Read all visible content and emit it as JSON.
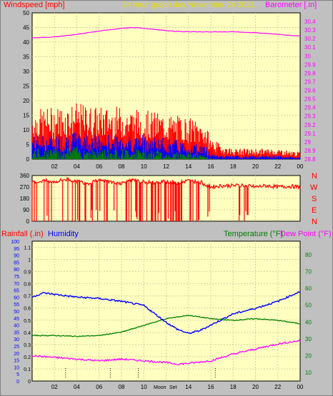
{
  "header": {
    "left": "Windspeed [mph]",
    "center": "24 hour graph day   November 24 2021",
    "right": "Barometer [.in]"
  },
  "panel3_header": {
    "rain": "Rainfall (.in)",
    "humidity": "Humidity",
    "temperature": "Temperature (°F)",
    "dewpoint": "Dew Point (°F)"
  },
  "compass": [
    "N",
    "W",
    "S",
    "E",
    "N"
  ],
  "annotations": {
    "moon": "Moon",
    "sunset": "Set"
  },
  "colors": {
    "plot_bg": "#ffffc0",
    "frame_bg": "#c0c0c0",
    "wind_gust": "#ff0000",
    "wind_avg": "#0000ff",
    "wind_low": "#008000",
    "barometer": "#ff00ff",
    "direction": "#ff0000",
    "humidity": "#0000ff",
    "temperature": "#008000",
    "dewpoint": "#ff00ff",
    "grid": "#d0d0a0"
  },
  "chart_data": [
    {
      "type": "bar",
      "name": "wind",
      "ylim": [
        0,
        50
      ],
      "y_ticks": [
        "0",
        "5",
        "10",
        "15",
        "20",
        "25",
        "30",
        "35",
        "40",
        "45",
        "50"
      ],
      "y2lim": [
        28.8,
        30.5
      ],
      "y2_ticks": [
        "28.8",
        "28.9",
        "29",
        "29.1",
        "29.2",
        "29.3",
        "29.4",
        "29.5",
        "29.6",
        "29.7",
        "29.8",
        "29.9",
        "30",
        "30.1",
        "30.2",
        "30.3",
        "30.4"
      ],
      "x_ticks": [
        "02",
        "04",
        "06",
        "08",
        "10",
        "12",
        "14",
        "16",
        "18",
        "20",
        "22",
        "00"
      ],
      "gust_envelope": {
        "x": [
          0,
          2,
          4,
          6,
          8,
          10,
          12,
          14,
          15.5,
          16,
          17,
          18,
          20,
          22,
          24
        ],
        "y": [
          14,
          15,
          16,
          15,
          15,
          14,
          13,
          12,
          10,
          6,
          4,
          3,
          3,
          3,
          2
        ]
      },
      "avg_envelope": {
        "x": [
          0,
          2,
          4,
          6,
          8,
          10,
          12,
          14,
          15.5,
          16,
          17,
          18,
          20,
          22,
          24
        ],
        "y": [
          7,
          7,
          8,
          7,
          7,
          7,
          6,
          5,
          4,
          2,
          1,
          1,
          1,
          1,
          0.5
        ]
      },
      "low_envelope": {
        "x": [
          0,
          2,
          4,
          6,
          8,
          10,
          12,
          14,
          15.5,
          16,
          17,
          18,
          20,
          22,
          24
        ],
        "y": [
          3,
          3,
          4,
          3,
          3,
          3,
          2,
          2,
          1,
          0.5,
          0,
          0,
          0,
          0,
          0
        ]
      },
      "barometer": {
        "x": [
          0,
          2,
          4,
          6,
          8,
          9,
          10,
          11,
          12,
          14,
          16,
          18,
          20,
          22,
          24
        ],
        "y": [
          30.21,
          30.22,
          30.25,
          30.29,
          30.32,
          30.33,
          30.32,
          30.31,
          30.29,
          30.28,
          30.28,
          30.28,
          30.27,
          30.25,
          30.23
        ]
      }
    },
    {
      "type": "line",
      "name": "direction",
      "ylim": [
        0,
        360
      ],
      "y_ticks": [
        "0",
        "90",
        "180",
        "270",
        "360"
      ],
      "x": [
        0,
        1,
        2,
        3,
        4,
        5,
        6,
        7,
        8,
        9,
        10,
        11,
        12,
        13,
        14,
        15,
        16,
        17,
        18,
        19,
        20,
        21,
        22,
        23,
        24
      ],
      "y": [
        300,
        320,
        310,
        330,
        315,
        300,
        320,
        310,
        300,
        320,
        310,
        300,
        315,
        300,
        320,
        310,
        270,
        280,
        280,
        285,
        270,
        280,
        270,
        275,
        270
      ]
    },
    {
      "type": "line",
      "name": "humidity-temperature",
      "ylim_humidity": [
        0,
        100
      ],
      "y_ticks_humidity": [
        "0",
        "5",
        "10",
        "15",
        "20",
        "25",
        "30",
        "35",
        "40",
        "45",
        "50",
        "55",
        "60",
        "65",
        "70",
        "75",
        "80",
        "85",
        "90",
        "95",
        "100"
      ],
      "ylim_rain": [
        0,
        1.15
      ],
      "y_ticks_rain": [
        "0",
        "0.1",
        "0.2",
        "0.3",
        "0.4",
        "0.5",
        "0.6",
        "0.7",
        "0.8",
        "0.9",
        "1",
        "1.1"
      ],
      "ylim_temp": [
        5,
        88
      ],
      "y_ticks_temp": [
        "10",
        "20",
        "30",
        "40",
        "50",
        "60",
        "70",
        "80"
      ],
      "humidity": {
        "x": [
          0,
          1,
          2,
          4,
          6,
          8,
          10,
          11,
          12,
          13,
          14,
          15,
          16,
          18,
          20,
          22,
          24
        ],
        "y": [
          60,
          63,
          62,
          60,
          59,
          57,
          54,
          48,
          42,
          37,
          34,
          36,
          40,
          48,
          52,
          57,
          64
        ]
      },
      "temperature": {
        "x": [
          0,
          2,
          4,
          6,
          8,
          10,
          12,
          13,
          14,
          15,
          16,
          18,
          20,
          22,
          24
        ],
        "y": [
          32,
          32,
          31.5,
          32,
          34,
          38,
          42,
          43,
          44,
          43,
          42,
          41,
          42,
          41,
          39
        ]
      },
      "dewpoint": {
        "x": [
          0,
          2,
          4,
          6,
          8,
          10,
          12,
          13,
          14,
          16,
          18,
          20,
          22,
          24
        ],
        "y": [
          20,
          19,
          18,
          17,
          18,
          17,
          16,
          15,
          15.5,
          17,
          21,
          24,
          27,
          29
        ]
      },
      "rain_ticks_x": [
        3,
        7,
        9.5,
        16.4
      ]
    }
  ]
}
